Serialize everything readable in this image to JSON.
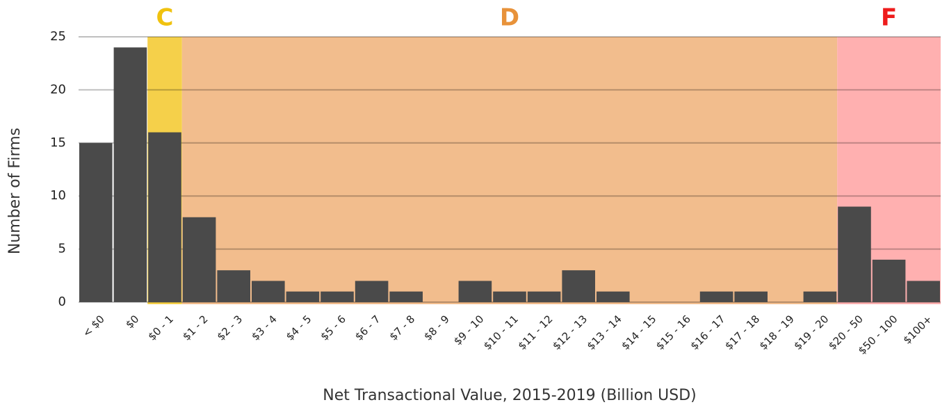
{
  "chart_data": {
    "type": "bar",
    "x_label": "Net Transactional Value, 2015-2019 (Billion USD)",
    "y_label": "Number of Firms",
    "categories": [
      "< $0",
      "$0",
      "$0 - 1",
      "$1 - 2",
      "$2 - 3",
      "$3 - 4",
      "$4 - 5",
      "$5 - 6",
      "$6 - 7",
      "$7 - 8",
      "$8 - 9",
      "$9 - 10",
      "$10 - 11",
      "$11 - 12",
      "$12 - 13",
      "$13 - 14",
      "$14 - 15",
      "$15 - 16",
      "$16 - 17",
      "$17 - 18",
      "$18 - 19",
      "$19 - 20",
      "$20 - 50",
      "$50 - 100",
      "$100+"
    ],
    "values": [
      15,
      24,
      16,
      8,
      3,
      2,
      1,
      1,
      2,
      1,
      0,
      2,
      1,
      1,
      3,
      1,
      0,
      0,
      1,
      1,
      0,
      1,
      9,
      4,
      2
    ],
    "color": "#4a4a4a",
    "ylim": [
      0,
      25
    ],
    "yticks": [
      0,
      5,
      10,
      15,
      20,
      25
    ],
    "grid": true,
    "bands": [
      {
        "label": "C",
        "start": 2,
        "end": 2,
        "color": "#f5d04a",
        "label_color": "#f0c20f"
      },
      {
        "label": "D",
        "start": 3,
        "end": 21,
        "color": "#f2bd8d",
        "label_color": "#e8923a"
      },
      {
        "label": "F",
        "start": 22,
        "end": 24,
        "color": "#ffb0b0",
        "label_color": "#ee1c1c"
      }
    ]
  }
}
